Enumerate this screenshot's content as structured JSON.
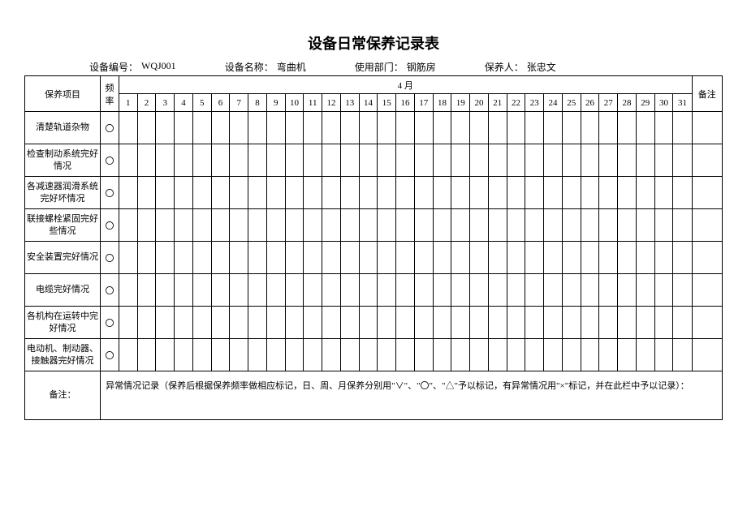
{
  "title": "设备日常保养记录表",
  "meta": {
    "device_no_label": "设备编号：",
    "device_no": "WQJ001",
    "device_name_label": "设备名称：",
    "device_name": "弯曲机",
    "department_label": "使用部门：",
    "department": "钢筋房",
    "maintainer_label": "保养人：",
    "maintainer": "张忠文"
  },
  "headers": {
    "item": "保养项目",
    "frequency": "频率",
    "month": "4 月",
    "remark": "备注"
  },
  "days": [
    "1",
    "2",
    "3",
    "4",
    "5",
    "6",
    "7",
    "8",
    "9",
    "10",
    "11",
    "12",
    "13",
    "14",
    "15",
    "16",
    "17",
    "18",
    "19",
    "20",
    "21",
    "22",
    "23",
    "24",
    "25",
    "26",
    "27",
    "28",
    "29",
    "30",
    "31"
  ],
  "freq_mark": "〇",
  "items": [
    "清楚轨道杂物",
    "检查制动系统完好情况",
    "各减速器润滑系统完好坏情况",
    "联接螺栓紧固完好些情况",
    "安全装置完好情况",
    "电缆完好情况",
    "各机构在运转中完好情况",
    "电动机、制动器、接触器完好情况"
  ],
  "remarks_label": "备注：",
  "remarks_text": "异常情况记录（保养后根据保养频率做相应标记，日、周、月保养分别用\"∨\"、\"〇\"、\"△\"予以标记，有异常情况用\"×\"标记，并在此栏中予以记录）："
}
